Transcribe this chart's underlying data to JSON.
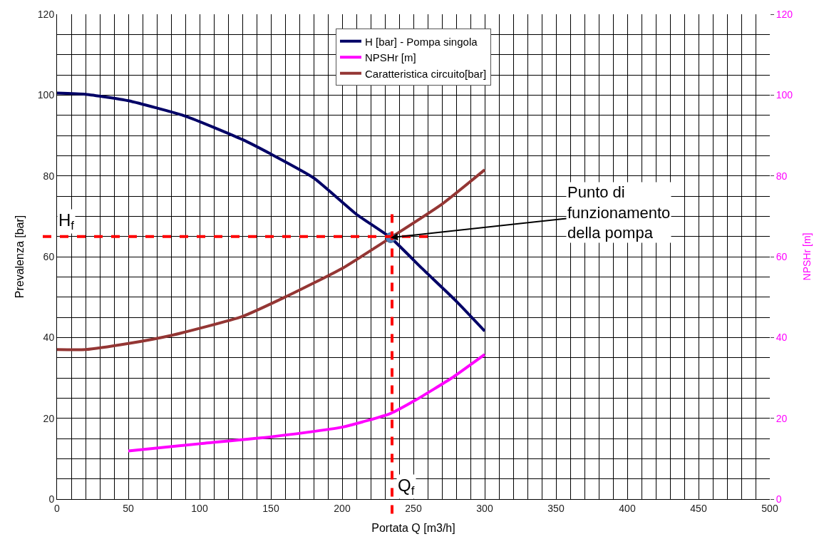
{
  "chart_data": {
    "type": "line",
    "xlabel": "Portata Q [m3/h]",
    "ylabel": "Prevalenza [bar]",
    "y2label": "NPSHr [m]",
    "series": [
      {
        "name": "H [bar] - Pompa singola",
        "color": "#000066",
        "x": [
          0,
          20,
          50,
          90,
          130,
          150,
          180,
          210,
          234,
          256,
          280,
          300
        ],
        "values": [
          100.5,
          100.2,
          98.6,
          94.8,
          89,
          85.4,
          79.5,
          70.5,
          64.7,
          57.1,
          49,
          41.6
        ]
      },
      {
        "name": "NPSHr [m]",
        "color": "#ff00ff",
        "axis": "y2",
        "x": [
          50,
          100,
          150,
          200,
          234,
          252,
          277,
          300
        ],
        "values": [
          11.9,
          13.7,
          15.4,
          17.8,
          21.2,
          24.6,
          30,
          35.8
        ]
      },
      {
        "name": "Caratteristica circuito[bar]",
        "color": "#943634",
        "x": [
          0,
          20,
          50,
          80,
          130,
          160,
          200,
          234,
          270,
          300
        ],
        "values": [
          37,
          37,
          38.5,
          40.5,
          45.2,
          50,
          57.1,
          64.7,
          73,
          81.5
        ]
      },
      {
        "type": "scatter",
        "color": "#4f81bd",
        "marker": "circle",
        "x": [
          234
        ],
        "values": [
          64.7
        ]
      }
    ],
    "ref_lines": [
      {
        "axis": "y",
        "value": 65,
        "label": "H$_{f}$",
        "color": "#ff0000",
        "line_style": "dashed"
      },
      {
        "axis": "x",
        "value": 235,
        "label": "Q$_{f}$",
        "color": "#ff0000",
        "line_style": "dashed"
      }
    ],
    "annotations": [
      {
        "text": "Punto di\nfunzionamento\ndella pompa",
        "x": 234,
        "y": 64.7
      }
    ],
    "xlim": [
      0,
      500
    ],
    "ylim": [
      0,
      120
    ],
    "y2lim": [
      0,
      120
    ],
    "xticks": [
      0,
      {
        "value": 10,
        "label": null
      },
      {
        "value": 20,
        "label": null
      },
      {
        "value": 30,
        "label": null
      },
      {
        "value": 40,
        "label": null
      },
      50,
      {
        "value": 60,
        "label": null
      },
      {
        "value": 70,
        "label": null
      },
      {
        "value": 80,
        "label": null
      },
      {
        "value": 90,
        "label": null
      },
      100,
      {
        "value": 110,
        "label": null
      },
      {
        "value": 120,
        "label": null
      },
      {
        "value": 130,
        "label": null
      },
      {
        "value": 140,
        "label": null
      },
      150,
      {
        "value": 160,
        "label": null
      },
      {
        "value": 170,
        "label": null
      },
      {
        "value": 180,
        "label": null
      },
      {
        "value": 190,
        "label": null
      },
      200,
      {
        "value": 210,
        "label": null
      },
      {
        "value": 220,
        "label": null
      },
      {
        "value": 230,
        "label": null
      },
      {
        "value": 240,
        "label": null
      },
      250,
      {
        "value": 260,
        "label": null
      },
      {
        "value": 270,
        "label": null
      },
      {
        "value": 280,
        "label": null
      },
      {
        "value": 290,
        "label": null
      },
      300,
      {
        "value": 310,
        "label": null
      },
      {
        "value": 320,
        "label": null
      },
      {
        "value": 330,
        "label": null
      },
      {
        "value": 340,
        "label": null
      },
      350,
      {
        "value": 360,
        "label": null
      },
      {
        "value": 370,
        "label": null
      },
      {
        "value": 380,
        "label": null
      },
      {
        "value": 390,
        "label": null
      },
      400,
      {
        "value": 410,
        "label": null
      },
      {
        "value": 420,
        "label": null
      },
      {
        "value": 430,
        "label": null
      },
      {
        "value": 440,
        "label": null
      },
      450,
      {
        "value": 460,
        "label": null
      },
      {
        "value": 470,
        "label": null
      },
      {
        "value": 480,
        "label": null
      },
      {
        "value": 490,
        "label": null
      },
      500
    ],
    "yticks": [
      0,
      {
        "value": 5,
        "label": null
      },
      {
        "value": 10,
        "label": null
      },
      {
        "value": 15,
        "label": null
      },
      20,
      {
        "value": 25,
        "label": null
      },
      {
        "value": 30,
        "label": null
      },
      {
        "value": 35,
        "label": null
      },
      40,
      {
        "value": 45,
        "label": null
      },
      {
        "value": 50,
        "label": null
      },
      {
        "value": 55,
        "label": null
      },
      60,
      {
        "value": 65,
        "label": null
      },
      {
        "value": 70,
        "label": null
      },
      {
        "value": 75,
        "label": null
      },
      80,
      {
        "value": 85,
        "label": null
      },
      {
        "value": 90,
        "label": null
      },
      {
        "value": 95,
        "label": null
      },
      100,
      {
        "value": 105,
        "label": null
      },
      {
        "value": 110,
        "label": null
      },
      {
        "value": 115,
        "label": null
      },
      120
    ],
    "y2ticks": [
      0,
      20,
      40,
      60,
      80,
      100,
      120
    ],
    "grid": true,
    "legend": "top",
    "marker": "none",
    "line_style": "solid"
  }
}
